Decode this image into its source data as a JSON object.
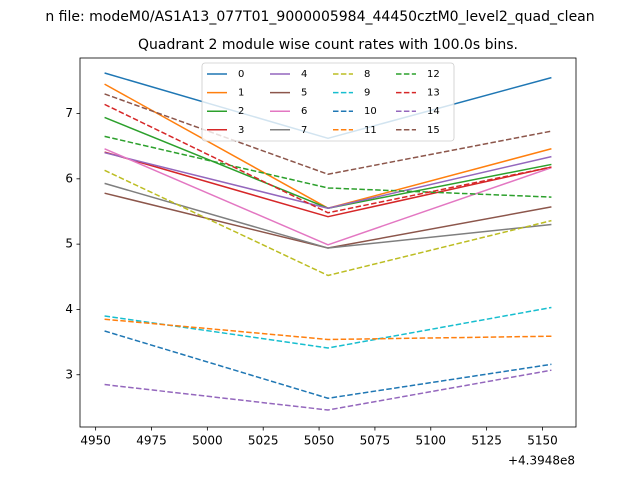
{
  "chart_data": {
    "type": "line",
    "suptitle": "n file: modeM0/AS1A13_077T01_9000005984_44450cztM0_level2_quad_clean",
    "title": "Quadrant 2 module wise count rates with 100.0s bins.",
    "xlabel": "",
    "ylabel": "",
    "x_offset_label": "+4.3948e8",
    "x": [
      4954,
      5054,
      5154
    ],
    "xlim": [
      4943,
      5165
    ],
    "ylim": [
      2.2,
      7.85
    ],
    "xticks": [
      4950,
      4975,
      5000,
      5025,
      5050,
      5075,
      5100,
      5125,
      5150
    ],
    "yticks": [
      3,
      4,
      5,
      6,
      7
    ],
    "legend_position": "upper-center",
    "legend_columns": 4,
    "grid": false,
    "series": [
      {
        "name": "0",
        "values": [
          7.62,
          6.62,
          7.55
        ],
        "color": "#1f77b4",
        "dash": "solid"
      },
      {
        "name": "1",
        "values": [
          7.45,
          5.55,
          6.46
        ],
        "color": "#ff7f0e",
        "dash": "solid"
      },
      {
        "name": "2",
        "values": [
          6.94,
          5.55,
          6.22
        ],
        "color": "#2ca02c",
        "dash": "solid"
      },
      {
        "name": "3",
        "values": [
          6.41,
          5.42,
          6.18
        ],
        "color": "#d62728",
        "dash": "solid"
      },
      {
        "name": "4",
        "values": [
          6.4,
          5.55,
          6.34
        ],
        "color": "#9467bd",
        "dash": "solid"
      },
      {
        "name": "5",
        "values": [
          5.78,
          4.94,
          5.57
        ],
        "color": "#8c564b",
        "dash": "solid"
      },
      {
        "name": "6",
        "values": [
          6.46,
          4.99,
          6.17
        ],
        "color": "#e377c2",
        "dash": "solid"
      },
      {
        "name": "7",
        "values": [
          5.93,
          4.94,
          5.3
        ],
        "color": "#7f7f7f",
        "dash": "solid"
      },
      {
        "name": "8",
        "values": [
          6.13,
          4.52,
          5.36
        ],
        "color": "#bcbd22",
        "dash": "dashed"
      },
      {
        "name": "9",
        "values": [
          3.9,
          3.41,
          4.03
        ],
        "color": "#17becf",
        "dash": "dashed"
      },
      {
        "name": "10",
        "values": [
          3.67,
          2.64,
          3.16
        ],
        "color": "#1f77b4",
        "dash": "dashed"
      },
      {
        "name": "11",
        "values": [
          3.85,
          3.54,
          3.59
        ],
        "color": "#ff7f0e",
        "dash": "dashed"
      },
      {
        "name": "12",
        "values": [
          6.65,
          5.86,
          5.72
        ],
        "color": "#2ca02c",
        "dash": "dashed"
      },
      {
        "name": "13",
        "values": [
          7.14,
          5.48,
          6.18
        ],
        "color": "#d62728",
        "dash": "dashed"
      },
      {
        "name": "14",
        "values": [
          2.85,
          2.46,
          3.07
        ],
        "color": "#9467bd",
        "dash": "dashed"
      },
      {
        "name": "15",
        "values": [
          7.3,
          6.07,
          6.73
        ],
        "color": "#8c564b",
        "dash": "dashed"
      }
    ]
  }
}
